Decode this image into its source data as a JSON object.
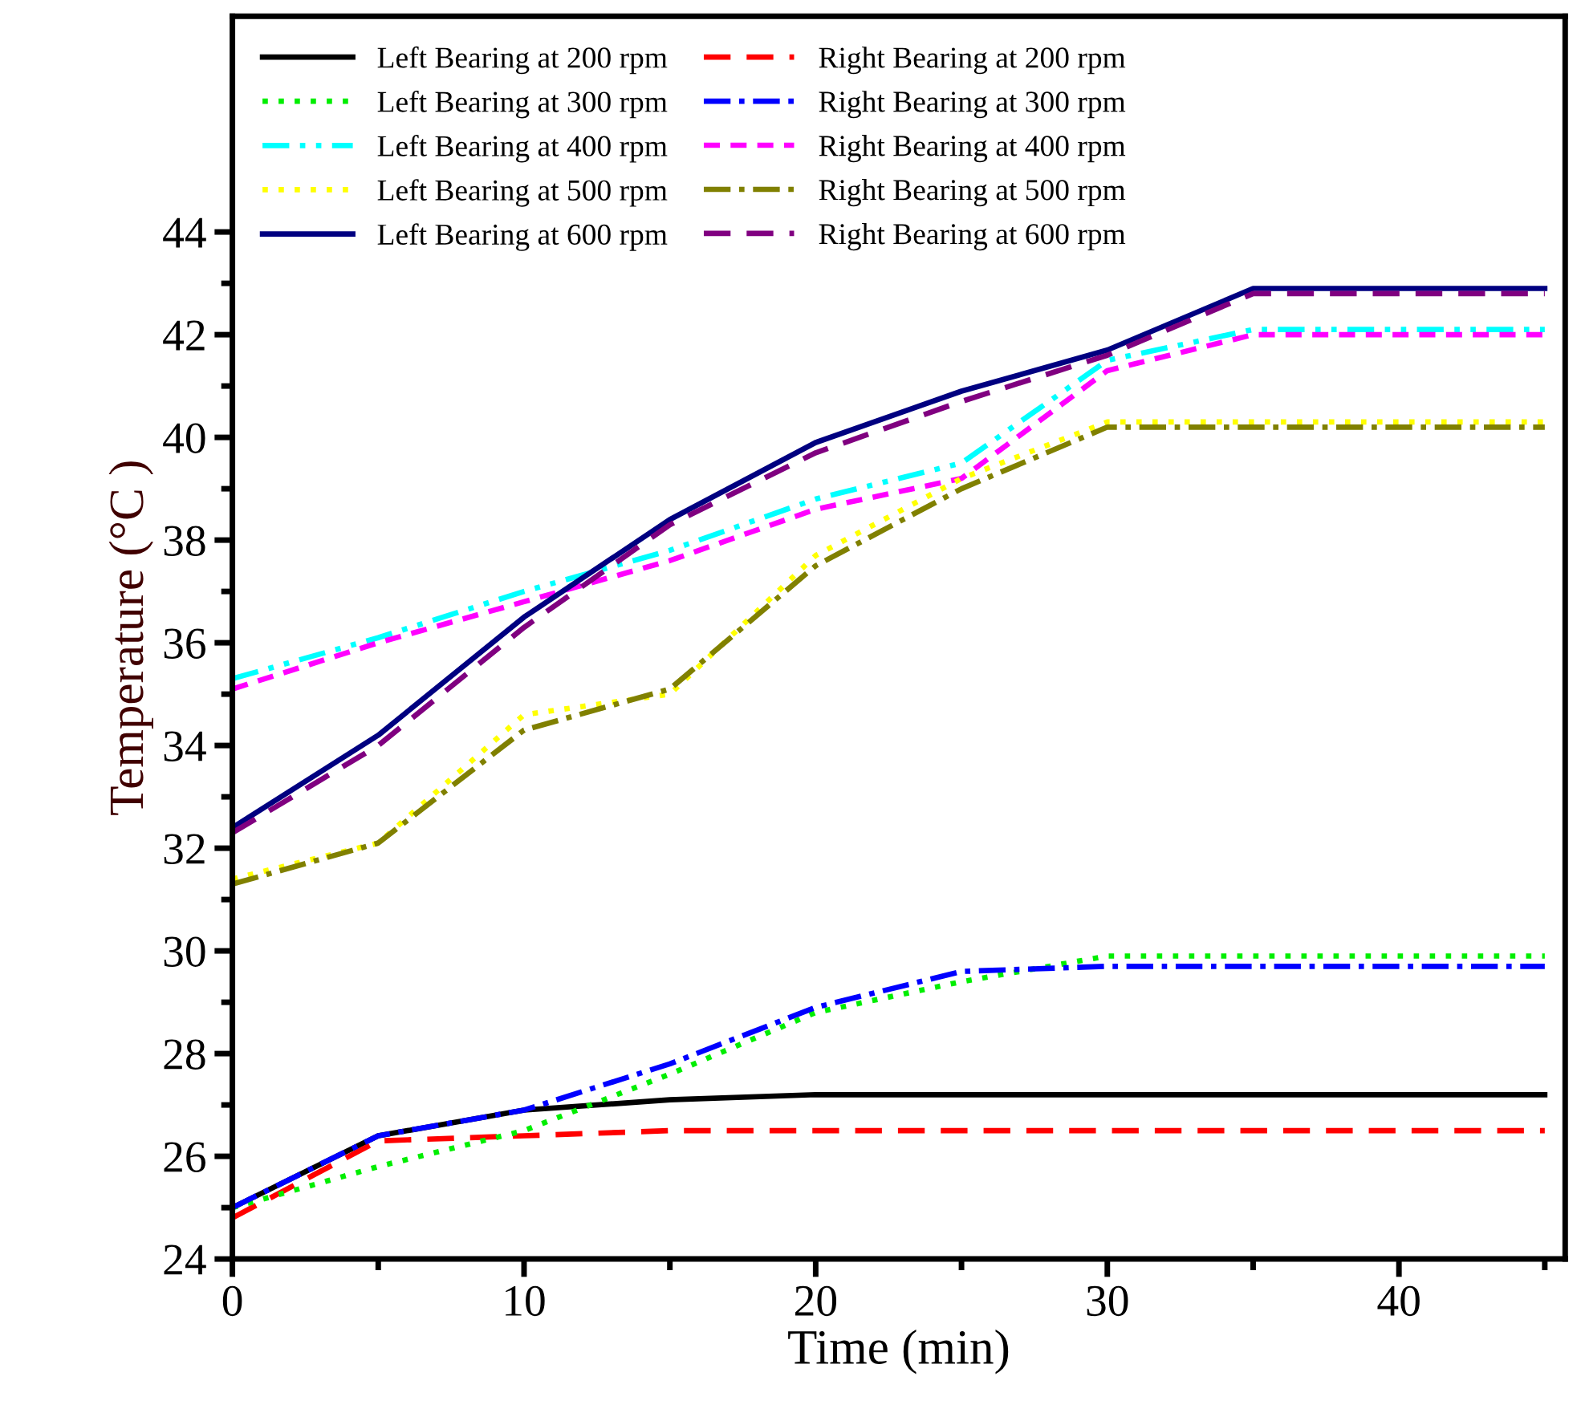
{
  "chart_data": {
    "type": "line",
    "xlabel": "Time (min)",
    "ylabel": "Temperature (°C )",
    "x": [
      0,
      5,
      10,
      15,
      20,
      25,
      30,
      35,
      40,
      45
    ],
    "series": [
      {
        "name": "Left Bearing at 200 rpm",
        "color": "#000000",
        "line_style": "solid",
        "values": [
          25.0,
          26.4,
          26.9,
          27.1,
          27.2,
          27.2,
          27.2,
          27.2,
          27.2,
          27.2
        ]
      },
      {
        "name": "Right Bearing at 200 rpm",
        "color": "#ff0000",
        "line_style": "dashed",
        "values": [
          24.8,
          26.3,
          26.4,
          26.5,
          26.5,
          26.5,
          26.5,
          26.5,
          26.5,
          26.5
        ]
      },
      {
        "name": "Left Bearing at 300 rpm",
        "color": "#00ee00",
        "line_style": "dotted",
        "values": [
          25.0,
          25.8,
          26.5,
          27.6,
          28.8,
          29.4,
          29.9,
          29.9,
          29.9,
          29.9
        ]
      },
      {
        "name": "Right Bearing at 300 rpm",
        "color": "#0000ff",
        "line_style": "dashdot",
        "values": [
          25.0,
          26.4,
          26.9,
          27.8,
          28.9,
          29.6,
          29.7,
          29.7,
          29.7,
          29.7
        ]
      },
      {
        "name": "Left Bearing at 400 rpm",
        "color": "#00ffff",
        "line_style": "dashdotdot",
        "values": [
          35.3,
          36.1,
          37.0,
          37.8,
          38.8,
          39.5,
          41.5,
          42.1,
          42.1,
          42.1
        ]
      },
      {
        "name": "Right Bearing at 400 rpm",
        "color": "#ff00ff",
        "line_style": "shortdash",
        "values": [
          35.1,
          36.0,
          36.8,
          37.6,
          38.6,
          39.2,
          41.3,
          42.0,
          42.0,
          42.0
        ]
      },
      {
        "name": "Left Bearing at 500 rpm",
        "color": "#ffff00",
        "line_style": "dotted",
        "values": [
          31.4,
          32.1,
          34.6,
          35.0,
          37.7,
          39.2,
          40.3,
          40.3,
          40.3,
          40.3
        ]
      },
      {
        "name": "Right Bearing at 500 rpm",
        "color": "#808000",
        "line_style": "dashdot",
        "values": [
          31.3,
          32.1,
          34.3,
          35.1,
          37.5,
          39.0,
          40.2,
          40.2,
          40.2,
          40.2
        ]
      },
      {
        "name": "Left Bearing at 600 rpm",
        "color": "#000080",
        "line_style": "solid",
        "values": [
          32.4,
          34.2,
          36.5,
          38.4,
          39.9,
          40.9,
          41.7,
          42.9,
          42.9,
          42.9
        ]
      },
      {
        "name": "Right Bearing at 600 rpm",
        "color": "#800080",
        "line_style": "dashed",
        "values": [
          32.3,
          34.0,
          36.3,
          38.3,
          39.7,
          40.7,
          41.6,
          42.8,
          42.8,
          42.8
        ]
      }
    ],
    "xlim": [
      0,
      45.7
    ],
    "ylim": [
      24,
      48.2
    ],
    "xticks": [
      0,
      {
        "value": 5,
        "label": null
      },
      10,
      {
        "value": 15,
        "label": null
      },
      20,
      {
        "value": 25,
        "label": null
      },
      30,
      {
        "value": 35,
        "label": null
      },
      40,
      {
        "value": 45,
        "label": null
      }
    ],
    "yticks": [
      24,
      {
        "value": 25,
        "label": null
      },
      26,
      {
        "value": 27,
        "label": null
      },
      28,
      {
        "value": 29,
        "label": null
      },
      30,
      {
        "value": 31,
        "label": null
      },
      32,
      {
        "value": 33,
        "label": null
      },
      34,
      {
        "value": 35,
        "label": null
      },
      36,
      {
        "value": 37,
        "label": null
      },
      38,
      {
        "value": 39,
        "label": null
      },
      40,
      {
        "value": 41,
        "label": null
      },
      42,
      {
        "value": 43,
        "label": null
      },
      44
    ],
    "grid": false,
    "legend": "top left"
  }
}
